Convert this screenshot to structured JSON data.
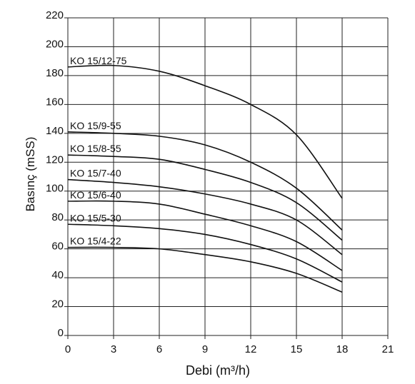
{
  "chart_data": {
    "type": "line",
    "xlabel": "Debi (m³/h)",
    "ylabel": "Basınç (mSS)",
    "xlim": [
      0,
      21
    ],
    "ylim": [
      0,
      220
    ],
    "x_ticks": [
      0,
      3,
      6,
      9,
      12,
      15,
      18,
      21
    ],
    "y_ticks": [
      0,
      20,
      40,
      60,
      80,
      100,
      120,
      140,
      160,
      180,
      200,
      220
    ],
    "grid": true,
    "series": [
      {
        "name": "KO 15/12-75",
        "x": [
          0,
          3,
          6,
          9,
          12,
          15,
          18
        ],
        "y": [
          186,
          187,
          183,
          173,
          160,
          139,
          95
        ]
      },
      {
        "name": "KO 15/9-55",
        "x": [
          0,
          3,
          6,
          9,
          12,
          15,
          18
        ],
        "y": [
          141,
          140,
          138,
          132,
          120,
          102,
          73
        ]
      },
      {
        "name": "KO 15/8-55",
        "x": [
          0,
          3,
          6,
          9,
          12,
          15,
          18
        ],
        "y": [
          125,
          124,
          122,
          115,
          106,
          92,
          66
        ]
      },
      {
        "name": "KO 15/7-40",
        "x": [
          0,
          3,
          6,
          9,
          12,
          15,
          18
        ],
        "y": [
          108,
          106,
          103,
          98,
          91,
          80,
          56
        ]
      },
      {
        "name": "KO 15/6-40",
        "x": [
          0,
          3,
          6,
          9,
          12,
          15,
          18
        ],
        "y": [
          93,
          93,
          91,
          84,
          76,
          65,
          45
        ]
      },
      {
        "name": "KO 15/5-30",
        "x": [
          0,
          3,
          6,
          9,
          12,
          15,
          18
        ],
        "y": [
          77,
          76,
          74,
          70,
          63,
          53,
          37
        ]
      },
      {
        "name": "KO 15/4-22",
        "x": [
          0,
          3,
          6,
          9,
          12,
          15,
          18
        ],
        "y": [
          61,
          61,
          60,
          56,
          51,
          43,
          30
        ]
      }
    ]
  }
}
